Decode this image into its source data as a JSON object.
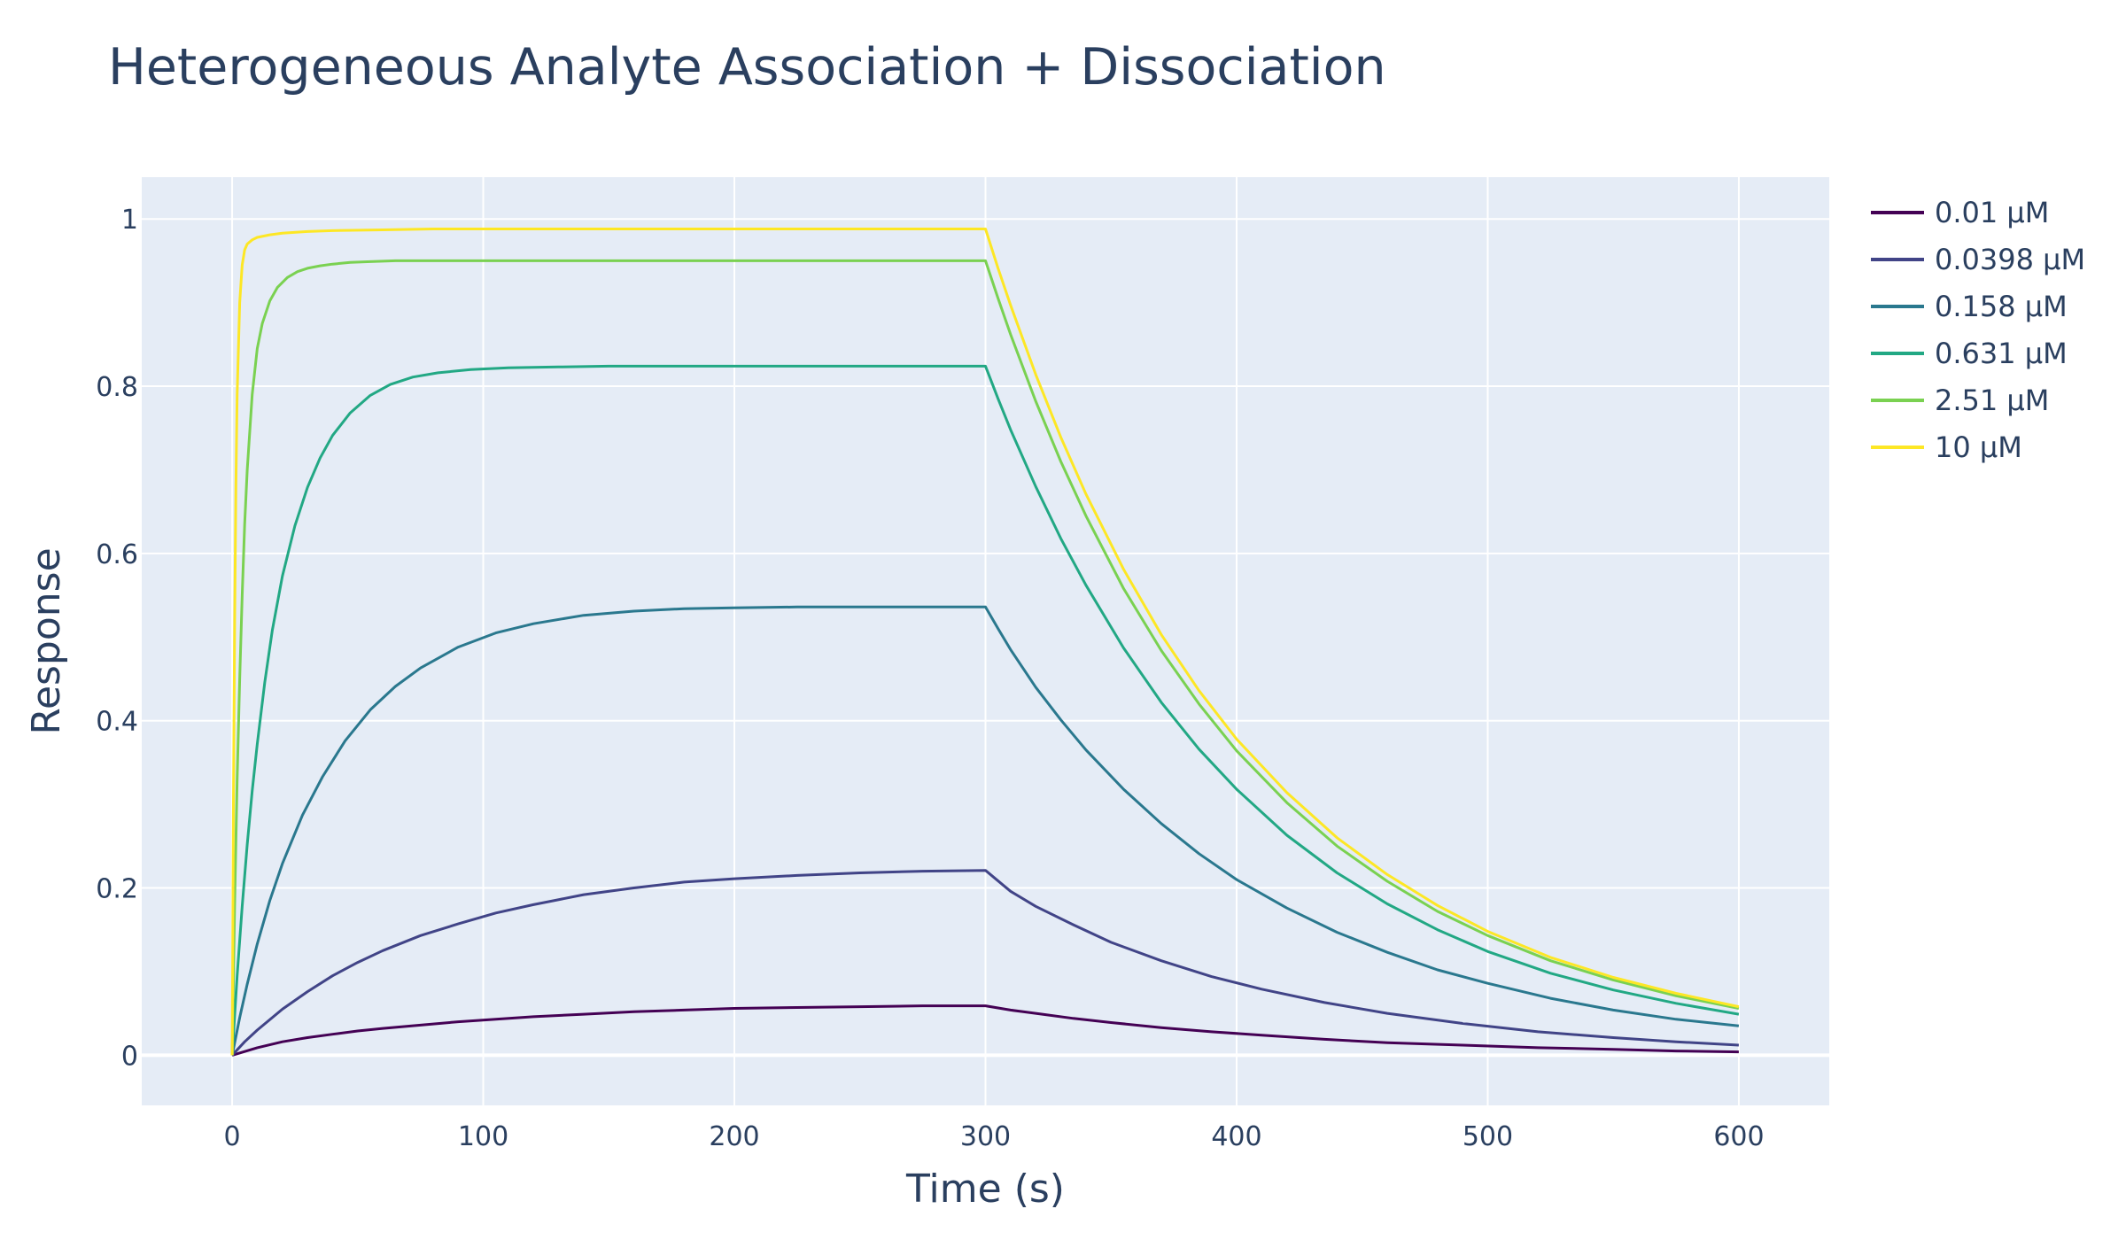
{
  "chart_data": {
    "type": "line",
    "title": "Heterogeneous Analyte Association + Dissociation",
    "xlabel": "Time (s)",
    "ylabel": "Response",
    "xlim": [
      -36,
      636
    ],
    "ylim": [
      -0.06,
      1.05
    ],
    "xticks": [
      0,
      100,
      200,
      300,
      400,
      500,
      600
    ],
    "yticks": [
      0,
      0.2,
      0.4,
      0.6,
      0.8,
      1
    ],
    "ytick_labels": [
      "0",
      "0.2",
      "0.4",
      "0.6",
      "0.8",
      "1"
    ],
    "grid": true,
    "legend_position": "top-right",
    "background": "#e5ecf6",
    "series": [
      {
        "name": "0.01 μM",
        "color": "#440154",
        "x": [
          0,
          10,
          20,
          30,
          40,
          50,
          60,
          75,
          90,
          105,
          120,
          140,
          160,
          180,
          200,
          225,
          250,
          275,
          300,
          310,
          320,
          335,
          350,
          370,
          390,
          410,
          435,
          460,
          490,
          520,
          550,
          575,
          600
        ],
        "y": [
          0,
          0.009,
          0.016,
          0.021,
          0.025,
          0.029,
          0.032,
          0.036,
          0.04,
          0.043,
          0.046,
          0.049,
          0.052,
          0.054,
          0.056,
          0.057,
          0.058,
          0.059,
          0.059,
          0.054,
          0.05,
          0.044,
          0.039,
          0.033,
          0.028,
          0.024,
          0.019,
          0.015,
          0.012,
          0.009,
          0.007,
          0.005,
          0.004
        ]
      },
      {
        "name": "0.0398 μM",
        "color": "#414487",
        "x": [
          0,
          5,
          10,
          20,
          30,
          40,
          50,
          60,
          75,
          90,
          105,
          120,
          140,
          160,
          180,
          200,
          225,
          250,
          275,
          300,
          310,
          320,
          335,
          350,
          370,
          390,
          410,
          435,
          460,
          490,
          520,
          550,
          575,
          600
        ],
        "y": [
          0,
          0.016,
          0.03,
          0.055,
          0.076,
          0.095,
          0.111,
          0.125,
          0.143,
          0.157,
          0.17,
          0.18,
          0.192,
          0.2,
          0.207,
          0.211,
          0.215,
          0.218,
          0.22,
          0.221,
          0.196,
          0.178,
          0.156,
          0.135,
          0.113,
          0.094,
          0.079,
          0.063,
          0.05,
          0.038,
          0.028,
          0.021,
          0.016,
          0.012
        ]
      },
      {
        "name": "0.158 μM",
        "color": "#2a788e",
        "x": [
          0,
          3,
          6,
          10,
          15,
          20,
          28,
          36,
          45,
          55,
          65,
          75,
          90,
          105,
          120,
          140,
          160,
          180,
          200,
          225,
          250,
          275,
          300,
          305,
          310,
          320,
          330,
          340,
          355,
          370,
          385,
          400,
          420,
          440,
          460,
          480,
          500,
          525,
          550,
          575,
          600
        ],
        "y": [
          0,
          0.045,
          0.085,
          0.133,
          0.185,
          0.229,
          0.287,
          0.333,
          0.376,
          0.413,
          0.441,
          0.463,
          0.488,
          0.505,
          0.516,
          0.526,
          0.531,
          0.534,
          0.535,
          0.536,
          0.536,
          0.536,
          0.536,
          0.51,
          0.485,
          0.44,
          0.401,
          0.365,
          0.318,
          0.277,
          0.241,
          0.21,
          0.176,
          0.147,
          0.123,
          0.102,
          0.086,
          0.068,
          0.054,
          0.043,
          0.035
        ]
      },
      {
        "name": "0.631 μM",
        "color": "#22a884",
        "x": [
          0,
          2,
          4,
          6,
          8,
          10,
          13,
          16,
          20,
          25,
          30,
          35,
          40,
          47,
          55,
          63,
          72,
          82,
          95,
          110,
          130,
          150,
          175,
          200,
          250,
          300,
          305,
          310,
          320,
          330,
          340,
          355,
          370,
          385,
          400,
          420,
          440,
          460,
          480,
          500,
          525,
          550,
          575,
          600
        ],
        "y": [
          0,
          0.095,
          0.178,
          0.252,
          0.316,
          0.372,
          0.446,
          0.508,
          0.573,
          0.633,
          0.679,
          0.714,
          0.741,
          0.768,
          0.789,
          0.802,
          0.811,
          0.816,
          0.82,
          0.822,
          0.823,
          0.824,
          0.824,
          0.824,
          0.824,
          0.824,
          0.785,
          0.748,
          0.68,
          0.618,
          0.562,
          0.487,
          0.422,
          0.366,
          0.318,
          0.263,
          0.218,
          0.181,
          0.15,
          0.124,
          0.098,
          0.078,
          0.062,
          0.049
        ]
      },
      {
        "name": "2.51 μM",
        "color": "#7ad151",
        "x": [
          0,
          1,
          2,
          3,
          4,
          5,
          6,
          8,
          10,
          12,
          15,
          18,
          22,
          26,
          30,
          35,
          40,
          47,
          55,
          65,
          80,
          100,
          130,
          160,
          200,
          250,
          300,
          305,
          310,
          320,
          330,
          340,
          355,
          370,
          385,
          400,
          420,
          440,
          460,
          480,
          500,
          525,
          550,
          575,
          600
        ],
        "y": [
          0,
          0.18,
          0.33,
          0.45,
          0.55,
          0.635,
          0.7,
          0.79,
          0.845,
          0.875,
          0.902,
          0.918,
          0.93,
          0.937,
          0.941,
          0.944,
          0.946,
          0.948,
          0.949,
          0.95,
          0.95,
          0.95,
          0.95,
          0.95,
          0.95,
          0.95,
          0.95,
          0.905,
          0.862,
          0.782,
          0.71,
          0.645,
          0.558,
          0.484,
          0.42,
          0.364,
          0.302,
          0.25,
          0.208,
          0.172,
          0.143,
          0.113,
          0.09,
          0.071,
          0.056
        ]
      },
      {
        "name": "10 μM",
        "color": "#fde725",
        "x": [
          0,
          0.5,
          1,
          1.5,
          2,
          3,
          4,
          5,
          6,
          8,
          10,
          15,
          20,
          30,
          40,
          60,
          80,
          100,
          150,
          200,
          250,
          300,
          305,
          310,
          320,
          330,
          340,
          355,
          370,
          385,
          400,
          420,
          440,
          460,
          480,
          500,
          525,
          550,
          575,
          600
        ],
        "y": [
          0,
          0.3,
          0.52,
          0.68,
          0.79,
          0.9,
          0.945,
          0.963,
          0.97,
          0.975,
          0.978,
          0.981,
          0.983,
          0.985,
          0.986,
          0.987,
          0.988,
          0.988,
          0.988,
          0.988,
          0.988,
          0.988,
          0.941,
          0.897,
          0.814,
          0.739,
          0.671,
          0.581,
          0.503,
          0.436,
          0.378,
          0.314,
          0.26,
          0.216,
          0.179,
          0.148,
          0.117,
          0.093,
          0.074,
          0.058
        ]
      }
    ]
  }
}
